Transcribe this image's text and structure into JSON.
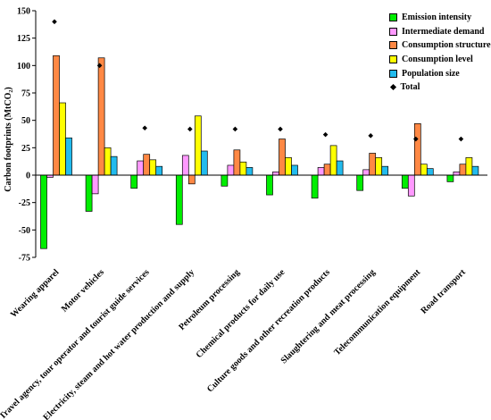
{
  "chart_data": {
    "type": "bar",
    "ylabel": "Carbon footprints (MtCO₂)",
    "ylim": [
      -75,
      150
    ],
    "yticks": [
      -75,
      -50,
      -25,
      0,
      25,
      50,
      75,
      100,
      125,
      150
    ],
    "grid": false,
    "legend_position": "top-right",
    "categories": [
      "Wearing apparel",
      "Motor vehicles",
      "Travel agency, tour operator and tourist guide services",
      "Electricity, steam and hot water production and supply",
      "Petroleum processing",
      "Chemical products for daily use",
      "Culture goods and other recreation products",
      "Slaughtering and meat processing",
      "Telecommunication equipment",
      "Road transport"
    ],
    "series": [
      {
        "name": "Emission intensity",
        "color": "#00ee00",
        "values": [
          -67,
          -33,
          -12,
          -45,
          -10,
          -18,
          -21,
          -14,
          -12,
          -6
        ]
      },
      {
        "name": "Intermediate demand",
        "color": "#ff99ff",
        "values": [
          -2,
          -17,
          13,
          18,
          9,
          3,
          7,
          5,
          -19,
          3
        ]
      },
      {
        "name": "Consumption structure",
        "color": "#ff8844",
        "values": [
          109,
          107,
          19,
          -8,
          23,
          33,
          10,
          20,
          47,
          10
        ]
      },
      {
        "name": "Consumption level",
        "color": "#ffff00",
        "values": [
          66,
          25,
          14,
          54,
          12,
          16,
          27,
          16,
          10,
          16
        ]
      },
      {
        "name": "Population size",
        "color": "#22bbee",
        "values": [
          34,
          17,
          8,
          22,
          7,
          9,
          13,
          8,
          6,
          8
        ]
      }
    ],
    "total": {
      "name": "Total",
      "values": [
        140,
        100,
        43,
        42,
        42,
        42,
        37,
        36,
        33,
        33
      ]
    }
  }
}
